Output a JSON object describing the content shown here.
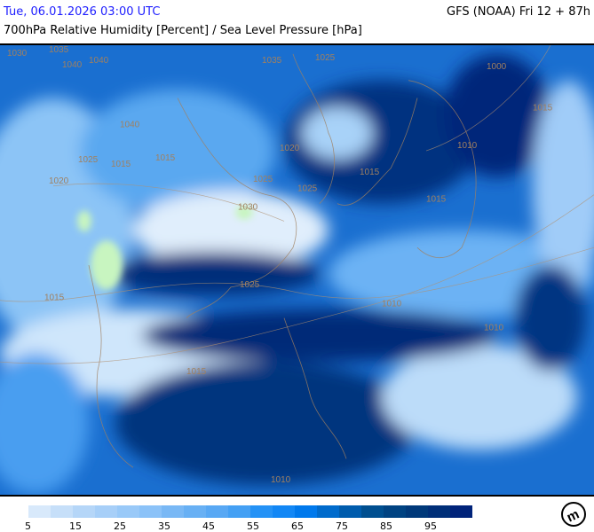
{
  "header": {
    "datetime": "Tue, 06.01.2026 03:00 UTC",
    "model": "GFS (NOAA) Fri 12 + 87h",
    "title": "700hPa Relative Humidity [Percent] / Sea Level Pressure [hPa]"
  },
  "map": {
    "isobar_labels": [
      {
        "text": "1030"
      },
      {
        "text": "1035"
      },
      {
        "text": "1040"
      },
      {
        "text": "1040"
      },
      {
        "text": "1035"
      },
      {
        "text": "1025"
      },
      {
        "text": "1000"
      },
      {
        "text": "1040"
      },
      {
        "text": "1015"
      },
      {
        "text": "1025"
      },
      {
        "text": "1010"
      },
      {
        "text": "1015"
      },
      {
        "text": "1020"
      },
      {
        "text": "1015"
      },
      {
        "text": "1020"
      },
      {
        "text": "1025"
      },
      {
        "text": "1015"
      },
      {
        "text": "1025"
      },
      {
        "text": "1030"
      },
      {
        "text": "1015"
      },
      {
        "text": "1025"
      },
      {
        "text": "1015"
      },
      {
        "text": "1010"
      },
      {
        "text": "1015"
      },
      {
        "text": "1010"
      },
      {
        "text": "1010"
      }
    ],
    "colors": {
      "coast": "#a08060",
      "isobar": "#b09070",
      "dry": "#cfe6fb",
      "wet": "#002a7a",
      "very_dry": "#c8f5c0"
    }
  },
  "legend": {
    "colors": [
      "#d8e9fb",
      "#c6dff9",
      "#b5d6f8",
      "#a7cff8",
      "#99c9f8",
      "#8bc2f8",
      "#79b8f5",
      "#68b0f4",
      "#58a8f4",
      "#44a0f4",
      "#2492f6",
      "#1287f5",
      "#0079ec",
      "#006bcc",
      "#005cad",
      "#004f90",
      "#004382",
      "#00397a",
      "#002f79",
      "#00237a"
    ],
    "ticks": [
      "5",
      "15",
      "25",
      "35",
      "45",
      "55",
      "65",
      "75",
      "85",
      "95"
    ]
  },
  "logo": {
    "text": "m"
  }
}
